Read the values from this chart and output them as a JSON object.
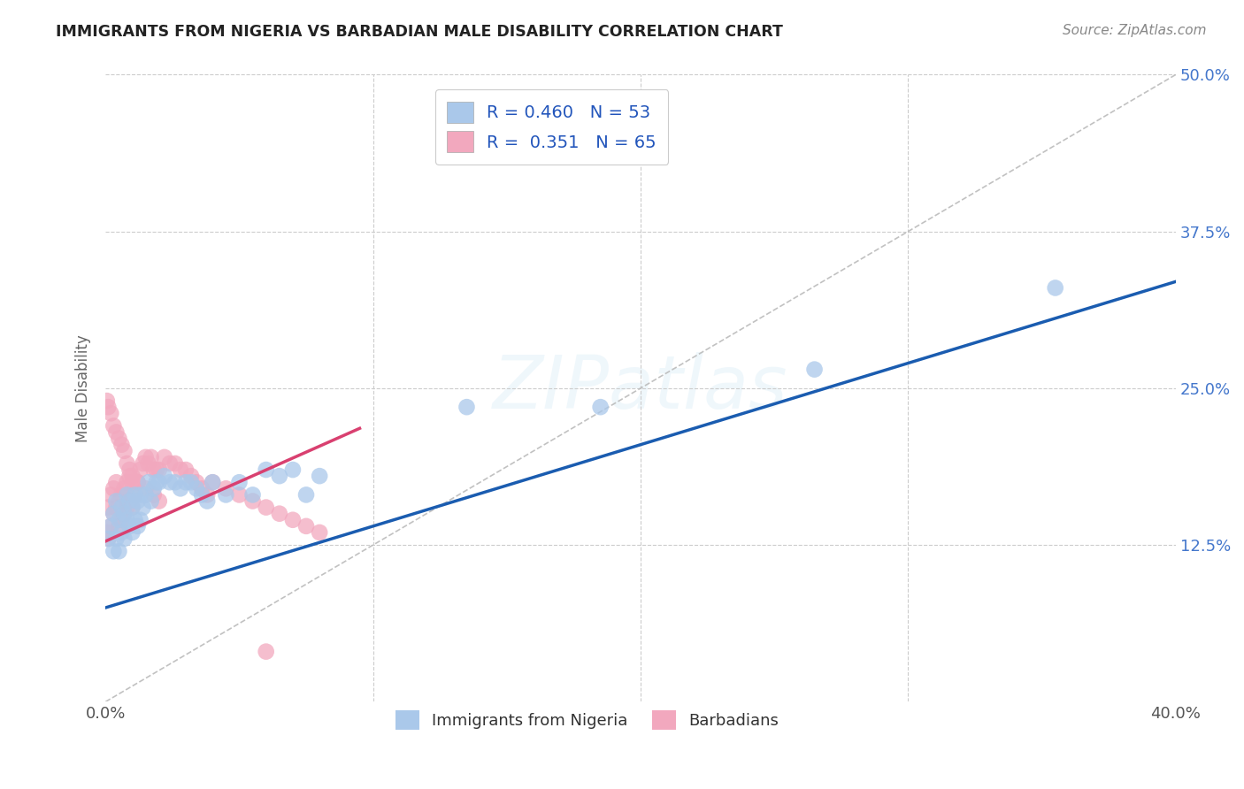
{
  "title": "IMMIGRANTS FROM NIGERIA VS BARBADIAN MALE DISABILITY CORRELATION CHART",
  "source": "Source: ZipAtlas.com",
  "ylabel": "Male Disability",
  "xlim": [
    0.0,
    0.4
  ],
  "ylim": [
    0.0,
    0.5
  ],
  "ytick_labels_right": [
    "12.5%",
    "25.0%",
    "37.5%",
    "50.0%"
  ],
  "yticks_right": [
    0.125,
    0.25,
    0.375,
    0.5
  ],
  "blue_R": 0.46,
  "blue_N": 53,
  "pink_R": 0.351,
  "pink_N": 65,
  "blue_color": "#aac8ea",
  "pink_color": "#f2a8be",
  "blue_line_color": "#1a5cb0",
  "pink_line_color": "#d94070",
  "ref_line_color": "#bbbbbb",
  "background_color": "#ffffff",
  "grid_color": "#cccccc",
  "blue_line_x": [
    0.0,
    0.4
  ],
  "blue_line_y": [
    0.075,
    0.335
  ],
  "pink_line_x": [
    0.0,
    0.095
  ],
  "pink_line_y": [
    0.128,
    0.218
  ],
  "blue_scatter_x": [
    0.001,
    0.002,
    0.003,
    0.003,
    0.004,
    0.004,
    0.005,
    0.005,
    0.006,
    0.006,
    0.007,
    0.007,
    0.008,
    0.008,
    0.009,
    0.009,
    0.01,
    0.01,
    0.011,
    0.011,
    0.012,
    0.012,
    0.013,
    0.013,
    0.014,
    0.015,
    0.016,
    0.017,
    0.018,
    0.019,
    0.02,
    0.022,
    0.024,
    0.026,
    0.028,
    0.03,
    0.032,
    0.034,
    0.036,
    0.038,
    0.04,
    0.045,
    0.05,
    0.055,
    0.06,
    0.065,
    0.07,
    0.075,
    0.08,
    0.135,
    0.185,
    0.265,
    0.355
  ],
  "blue_scatter_y": [
    0.13,
    0.14,
    0.12,
    0.15,
    0.13,
    0.16,
    0.12,
    0.145,
    0.135,
    0.155,
    0.13,
    0.15,
    0.145,
    0.165,
    0.14,
    0.16,
    0.135,
    0.155,
    0.145,
    0.165,
    0.14,
    0.16,
    0.145,
    0.165,
    0.155,
    0.165,
    0.175,
    0.16,
    0.17,
    0.175,
    0.175,
    0.18,
    0.175,
    0.175,
    0.17,
    0.175,
    0.175,
    0.17,
    0.165,
    0.16,
    0.175,
    0.165,
    0.175,
    0.165,
    0.185,
    0.18,
    0.185,
    0.165,
    0.18,
    0.235,
    0.235,
    0.265,
    0.33
  ],
  "pink_scatter_x": [
    0.0005,
    0.001,
    0.001,
    0.002,
    0.002,
    0.003,
    0.003,
    0.004,
    0.004,
    0.005,
    0.005,
    0.006,
    0.006,
    0.007,
    0.007,
    0.008,
    0.008,
    0.009,
    0.009,
    0.01,
    0.01,
    0.011,
    0.012,
    0.013,
    0.014,
    0.015,
    0.016,
    0.017,
    0.018,
    0.019,
    0.02,
    0.022,
    0.024,
    0.026,
    0.028,
    0.03,
    0.032,
    0.034,
    0.036,
    0.038,
    0.04,
    0.045,
    0.05,
    0.055,
    0.06,
    0.065,
    0.07,
    0.075,
    0.08,
    0.0005,
    0.001,
    0.002,
    0.003,
    0.004,
    0.005,
    0.006,
    0.007,
    0.008,
    0.009,
    0.01,
    0.012,
    0.015,
    0.018,
    0.02,
    0.06
  ],
  "pink_scatter_y": [
    0.135,
    0.13,
    0.155,
    0.14,
    0.165,
    0.15,
    0.17,
    0.155,
    0.175,
    0.14,
    0.16,
    0.145,
    0.165,
    0.15,
    0.17,
    0.155,
    0.175,
    0.16,
    0.18,
    0.155,
    0.175,
    0.165,
    0.175,
    0.185,
    0.19,
    0.195,
    0.19,
    0.195,
    0.185,
    0.185,
    0.185,
    0.195,
    0.19,
    0.19,
    0.185,
    0.185,
    0.18,
    0.175,
    0.17,
    0.165,
    0.175,
    0.17,
    0.165,
    0.16,
    0.155,
    0.15,
    0.145,
    0.14,
    0.135,
    0.24,
    0.235,
    0.23,
    0.22,
    0.215,
    0.21,
    0.205,
    0.2,
    0.19,
    0.185,
    0.18,
    0.175,
    0.17,
    0.165,
    0.16,
    0.04
  ]
}
